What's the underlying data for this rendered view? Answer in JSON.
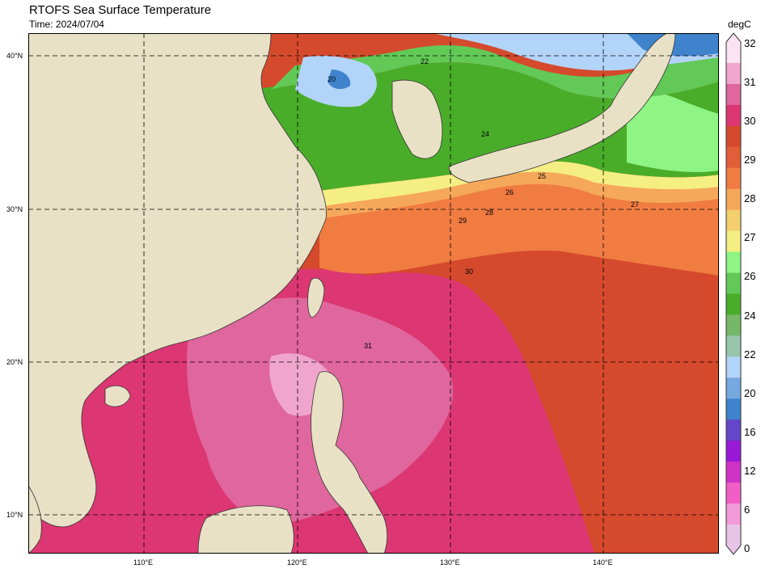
{
  "header": {
    "title": "RTOFS Sea Surface Temperature",
    "time": "Time: 2024/07/04"
  },
  "axes": {
    "lon_labels": [
      "110°E",
      "120°E",
      "130°E",
      "140°E"
    ],
    "lat_labels": [
      "40°N",
      "30°N",
      "20°N",
      "10°N"
    ]
  },
  "colorbar": {
    "unit": "degC",
    "ticks": [
      "32",
      "31",
      "30",
      "29",
      "28",
      "27",
      "26",
      "24",
      "22",
      "20",
      "16",
      "12",
      "6",
      "0"
    ],
    "colors": [
      "#fbe3f3",
      "#f0a6cc",
      "#e0669e",
      "#dc3773",
      "#d54a2c",
      "#e25e38",
      "#f07c42",
      "#f6a85a",
      "#f3cf6e",
      "#f5ee82",
      "#8ef584",
      "#62c957",
      "#4aad2a",
      "#77b868",
      "#97c6ad",
      "#b3d4f9",
      "#76a8e0",
      "#3e83cc",
      "#6346c9",
      "#9a18d8",
      "#d132c6",
      "#f15fc6",
      "#f39bd8",
      "#e7c4e8"
    ]
  },
  "map": {
    "land_color": "#e9e1c6",
    "contour_labels": [
      "20",
      "22",
      "24",
      "25",
      "26",
      "27",
      "28",
      "29",
      "30",
      "31"
    ]
  }
}
